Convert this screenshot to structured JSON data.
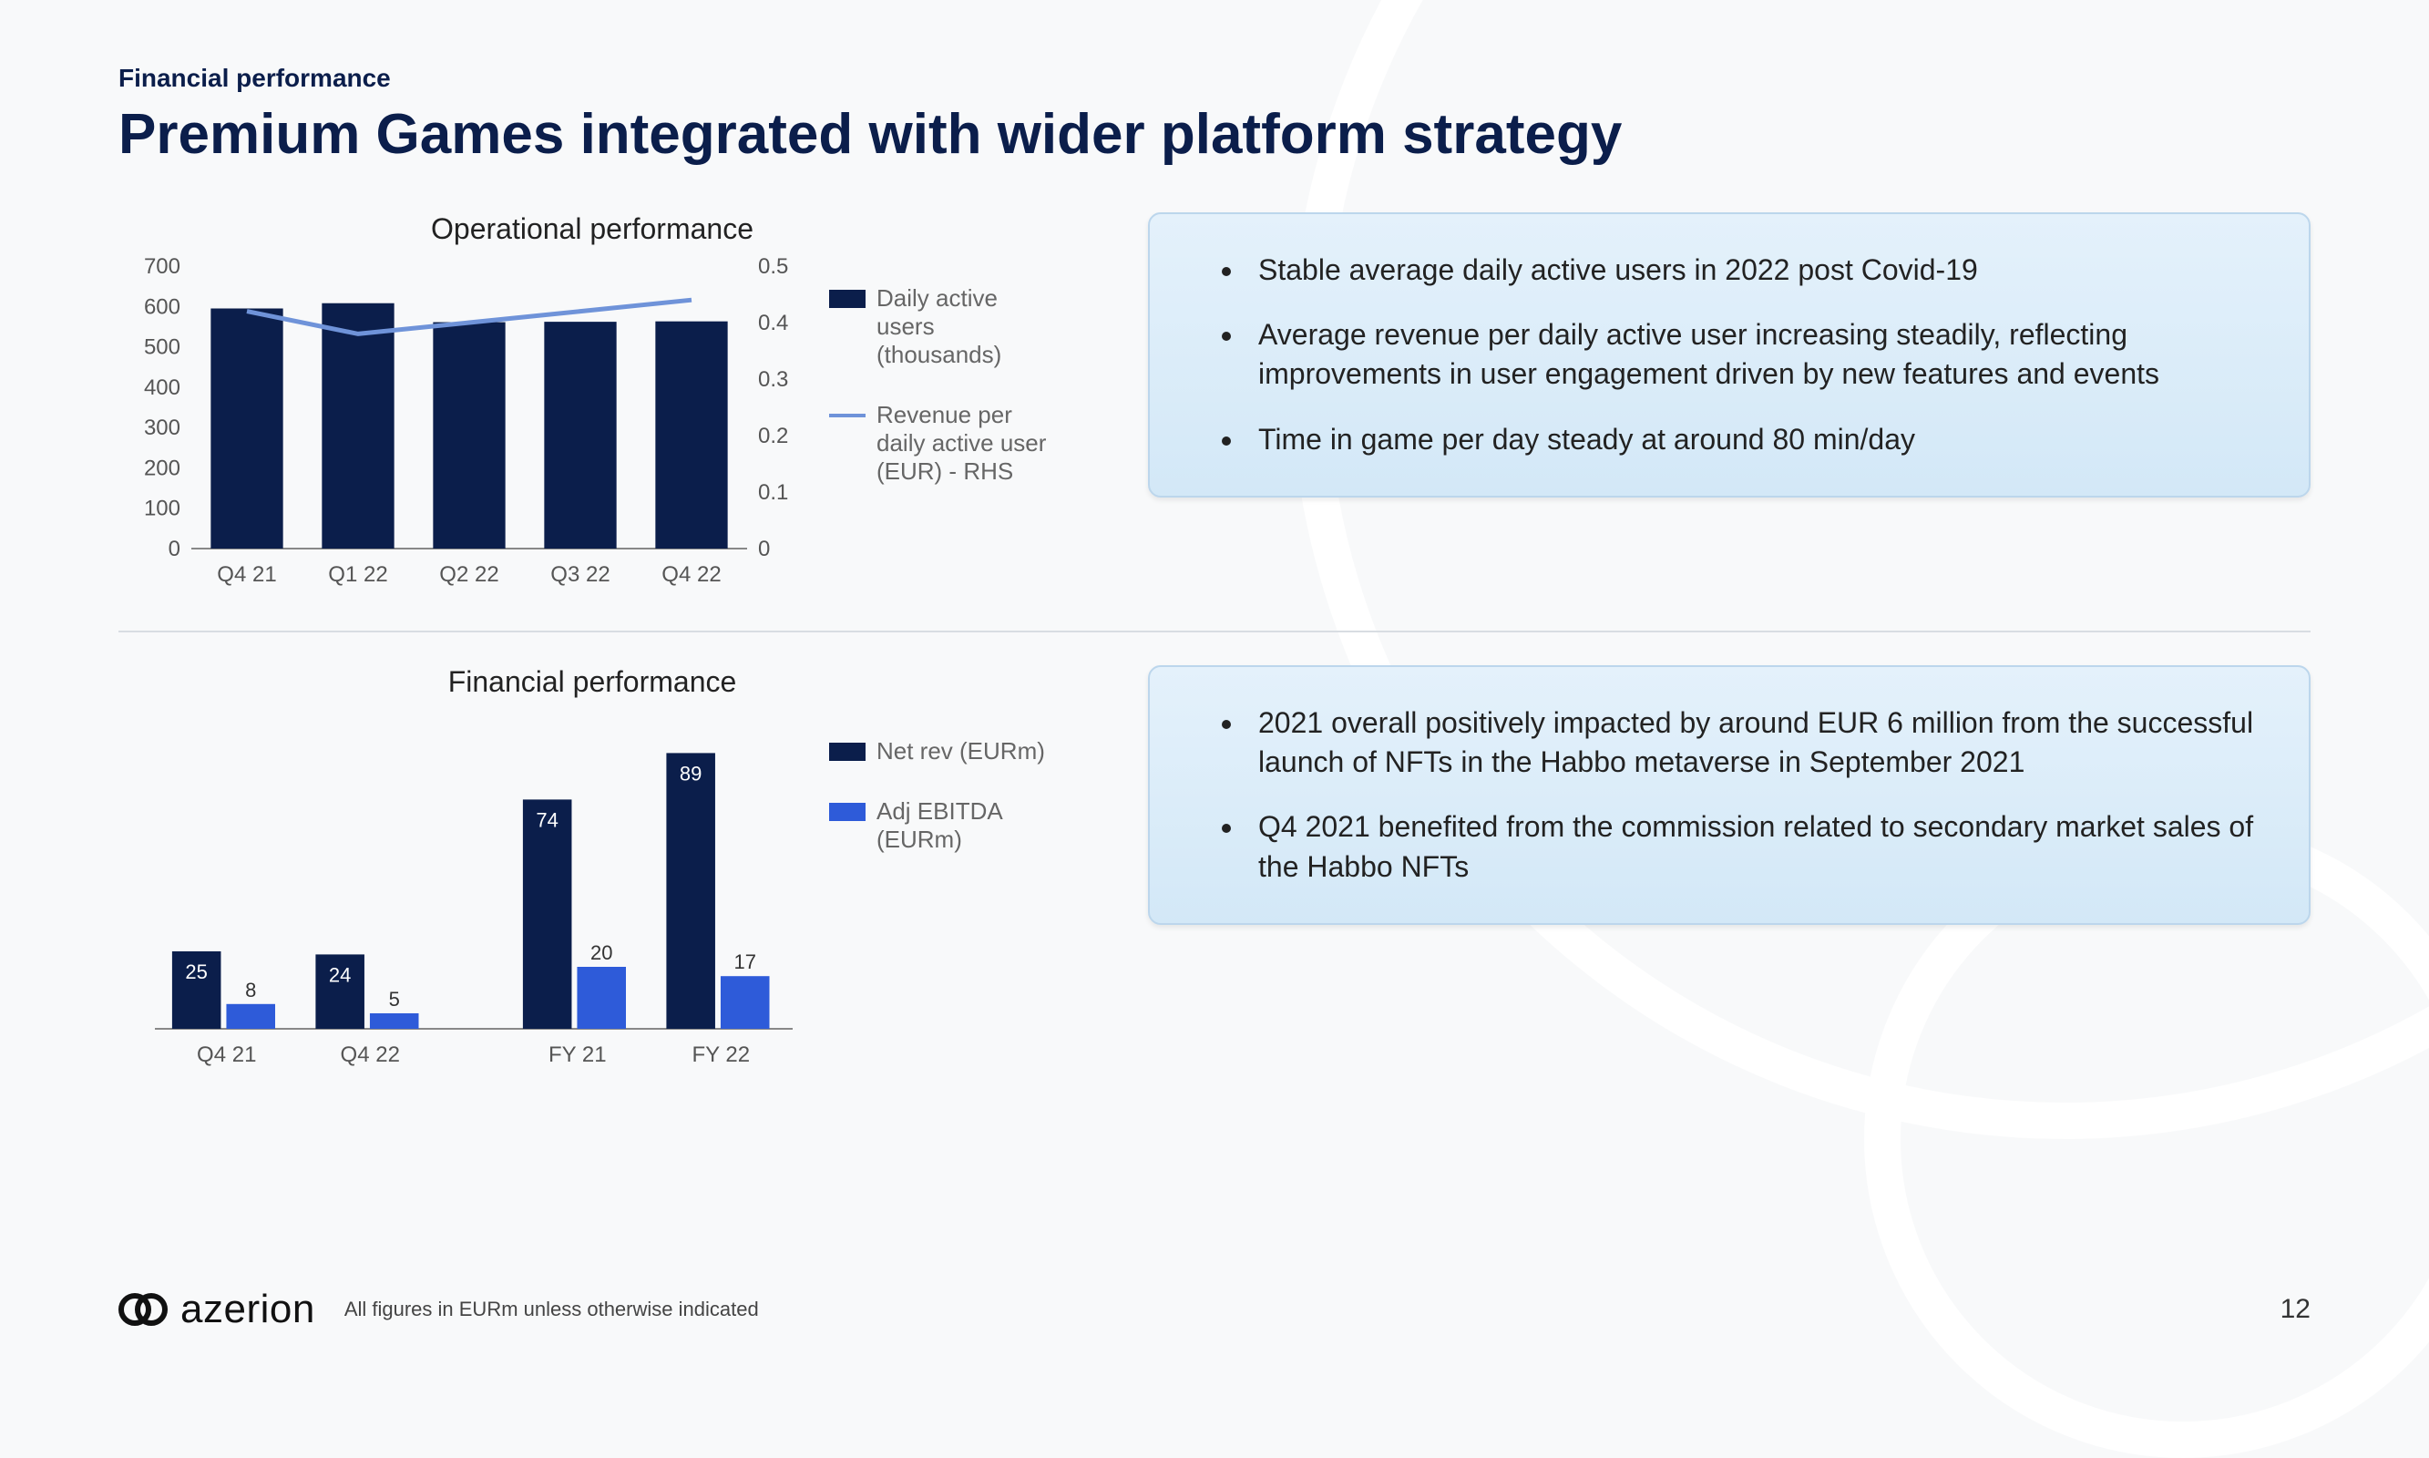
{
  "eyebrow": "Financial performance",
  "title": "Premium Games integrated with wider platform strategy",
  "chart1": {
    "title": "Operational performance",
    "categories": [
      "Q4 21",
      "Q1 22",
      "Q2 22",
      "Q3 22",
      "Q4 22"
    ],
    "bar_values": [
      595,
      608,
      561,
      562,
      563
    ],
    "line_values": [
      0.42,
      0.38,
      0.4,
      0.42,
      0.44
    ],
    "y_left": {
      "min": 0,
      "max": 700,
      "step": 100
    },
    "y_right": {
      "min": 0,
      "max": 0.5,
      "step": 0.1
    },
    "bar_color": "#0b1e4b",
    "line_color": "#6f93d9",
    "axis_color": "#888888",
    "tick_font": 24,
    "legend": [
      {
        "type": "swatch",
        "color": "#0b1e4b",
        "label": "Daily active users (thousands)"
      },
      {
        "type": "line",
        "color": "#6f93d9",
        "label": "Revenue per daily active user (EUR) - RHS"
      }
    ]
  },
  "bullets1": [
    "Stable average daily active users in 2022 post Covid-19",
    "Average revenue per daily active user increasing steadily, reflecting improvements in user engagement driven by new features and events",
    "Time in game per day steady at around 80 min/day"
  ],
  "chart2": {
    "title": "Financial performance",
    "groups": [
      {
        "cat": "Q4 21",
        "net": 25,
        "ebitda": 8
      },
      {
        "cat": "Q4 22",
        "net": 24,
        "ebitda": 5
      },
      {
        "cat": "FY 21",
        "net": 74,
        "ebitda": 20
      },
      {
        "cat": "FY 22",
        "net": 89,
        "ebitda": 17
      }
    ],
    "gap_after_index": 1,
    "y_max": 100,
    "net_color": "#0b1e4b",
    "ebitda_color": "#2e5bd9",
    "label_font": 22,
    "cat_font": 24,
    "legend": [
      {
        "type": "swatch",
        "color": "#0b1e4b",
        "label": "Net rev (EURm)"
      },
      {
        "type": "swatch",
        "color": "#2e5bd9",
        "label": "Adj EBITDA (EURm)"
      }
    ]
  },
  "bullets2": [
    "2021 overall positively impacted by around EUR 6 million from the successful launch of NFTs in the Habbo metaverse in September 2021",
    "Q4 2021 benefited from the commission related to secondary market sales of the Habbo NFTs"
  ],
  "brand": "azerion",
  "footnote": "All figures in EURm unless otherwise indicated",
  "page": "12"
}
